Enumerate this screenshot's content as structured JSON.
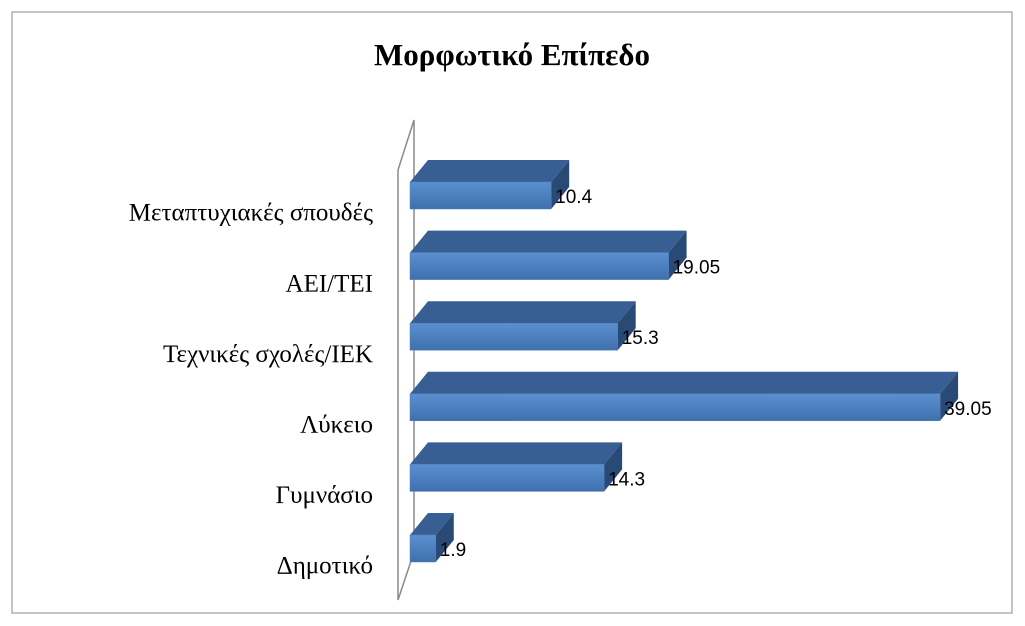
{
  "chart_data": {
    "type": "bar",
    "orientation": "horizontal",
    "title": "Μορφωτικό Επίπεδο",
    "categories": [
      "Μεταπτυχιακές σπουδές",
      "ΑΕΙ/ΤΕΙ",
      "Τεχνικές σχολές/ΙΕΚ",
      "Λύκειο",
      "Γυμνάσιο",
      "Δημοτικό"
    ],
    "values": [
      10.4,
      19.05,
      15.3,
      39.05,
      14.3,
      1.9
    ],
    "color": "#4f81bd",
    "xlim": [
      0,
      40
    ],
    "data_labels": true,
    "grid": false,
    "legend": false
  }
}
